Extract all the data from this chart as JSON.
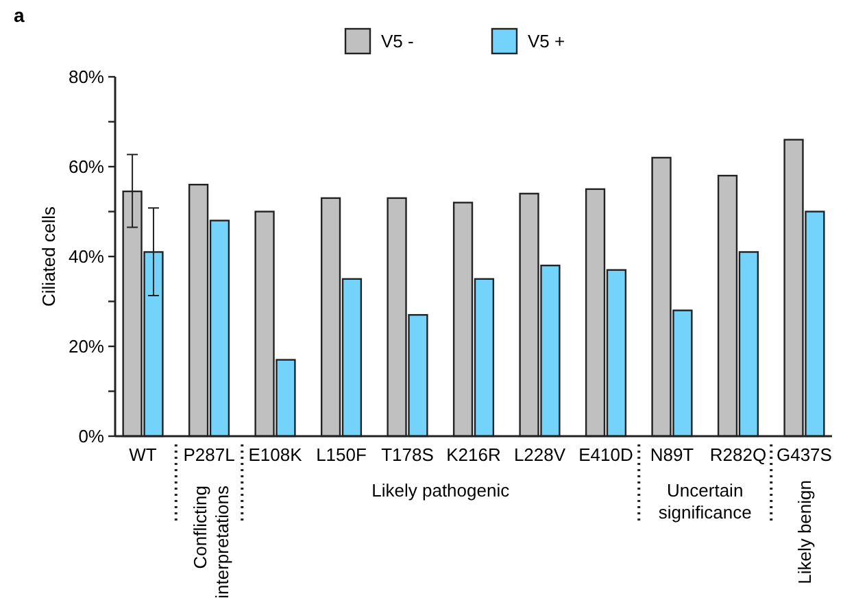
{
  "chart_data": {
    "type": "bar",
    "title": "a",
    "ylabel": "Ciliated cells",
    "categories": [
      "WT",
      "P287L",
      "E108K",
      "L150F",
      "T178S",
      "K216R",
      "L228V",
      "E410D",
      "N89T",
      "R282Q",
      "G437S"
    ],
    "series": [
      {
        "name": "V5 -",
        "color": "#c0c0c0",
        "values": [
          54.5,
          56,
          50,
          53,
          53,
          52,
          54,
          55,
          62,
          58,
          66
        ],
        "errors": [
          [
            46.5,
            62.7
          ],
          null,
          null,
          null,
          null,
          null,
          null,
          null,
          null,
          null,
          null
        ]
      },
      {
        "name": "V5 +",
        "color": "#73d3fb",
        "values": [
          41,
          48,
          17,
          35,
          27,
          35,
          38,
          37,
          28,
          41,
          50
        ],
        "errors": [
          [
            31.3,
            50.8
          ],
          null,
          null,
          null,
          null,
          null,
          null,
          null,
          null,
          null,
          null
        ]
      }
    ],
    "ylim": [
      0,
      80
    ],
    "yticks": [
      {
        "value": 0,
        "label": "0%"
      },
      {
        "value": 10,
        "label": null
      },
      {
        "value": 20,
        "label": "20%"
      },
      {
        "value": 30,
        "label": null
      },
      {
        "value": 40,
        "label": "40%"
      },
      {
        "value": 50,
        "label": null
      },
      {
        "value": 60,
        "label": "60%"
      },
      {
        "value": 70,
        "label": null
      },
      {
        "value": 80,
        "label": "80%"
      }
    ],
    "annotations": [
      "Conflicting interpretations",
      "Likely pathogenic",
      "Uncertain significance",
      "Likely benign"
    ],
    "legend": "top",
    "grid": false
  }
}
